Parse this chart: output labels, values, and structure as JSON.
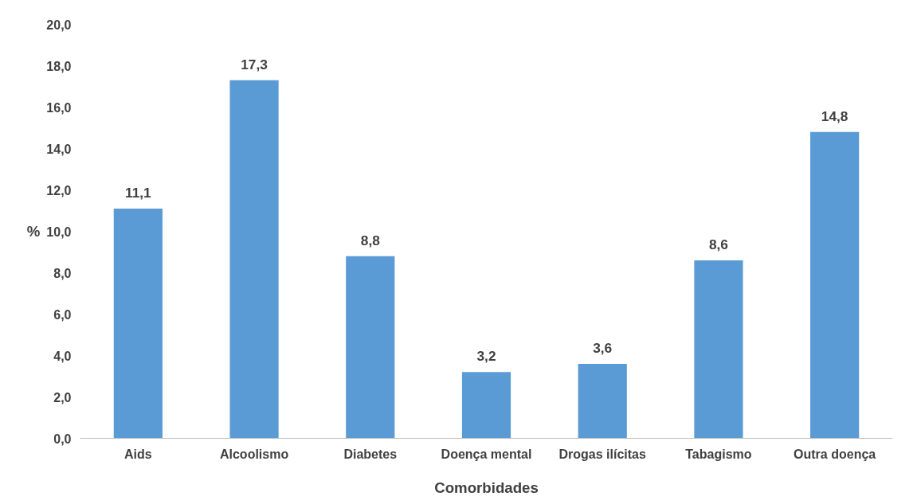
{
  "chart_data": {
    "type": "bar",
    "xlabel": "Comorbidades",
    "ylabel": "%",
    "categories": [
      "Aids",
      "Alcoolismo",
      "Diabetes",
      "Doença mental",
      "Drogas ilícitas",
      "Tabagismo",
      "Outra doença"
    ],
    "values": [
      11.1,
      17.3,
      8.8,
      3.2,
      3.6,
      8.6,
      14.8
    ],
    "value_labels": [
      "11,1",
      "17,3",
      "8,8",
      "3,2",
      "3,6",
      "8,6",
      "14,8"
    ],
    "color": "#5b9bd5",
    "ylim": [
      0,
      20
    ],
    "yticks": [
      {
        "value": 0,
        "label": "0,0"
      },
      {
        "value": 2,
        "label": "2,0"
      },
      {
        "value": 4,
        "label": "4,0"
      },
      {
        "value": 6,
        "label": "6,0"
      },
      {
        "value": 8,
        "label": "8,0"
      },
      {
        "value": 10,
        "label": "10,0"
      },
      {
        "value": 12,
        "label": "12,0"
      },
      {
        "value": 14,
        "label": "14,0"
      },
      {
        "value": 16,
        "label": "16,0"
      },
      {
        "value": 18,
        "label": "18,0"
      },
      {
        "value": 20,
        "label": "20,0"
      }
    ],
    "grid": false
  }
}
